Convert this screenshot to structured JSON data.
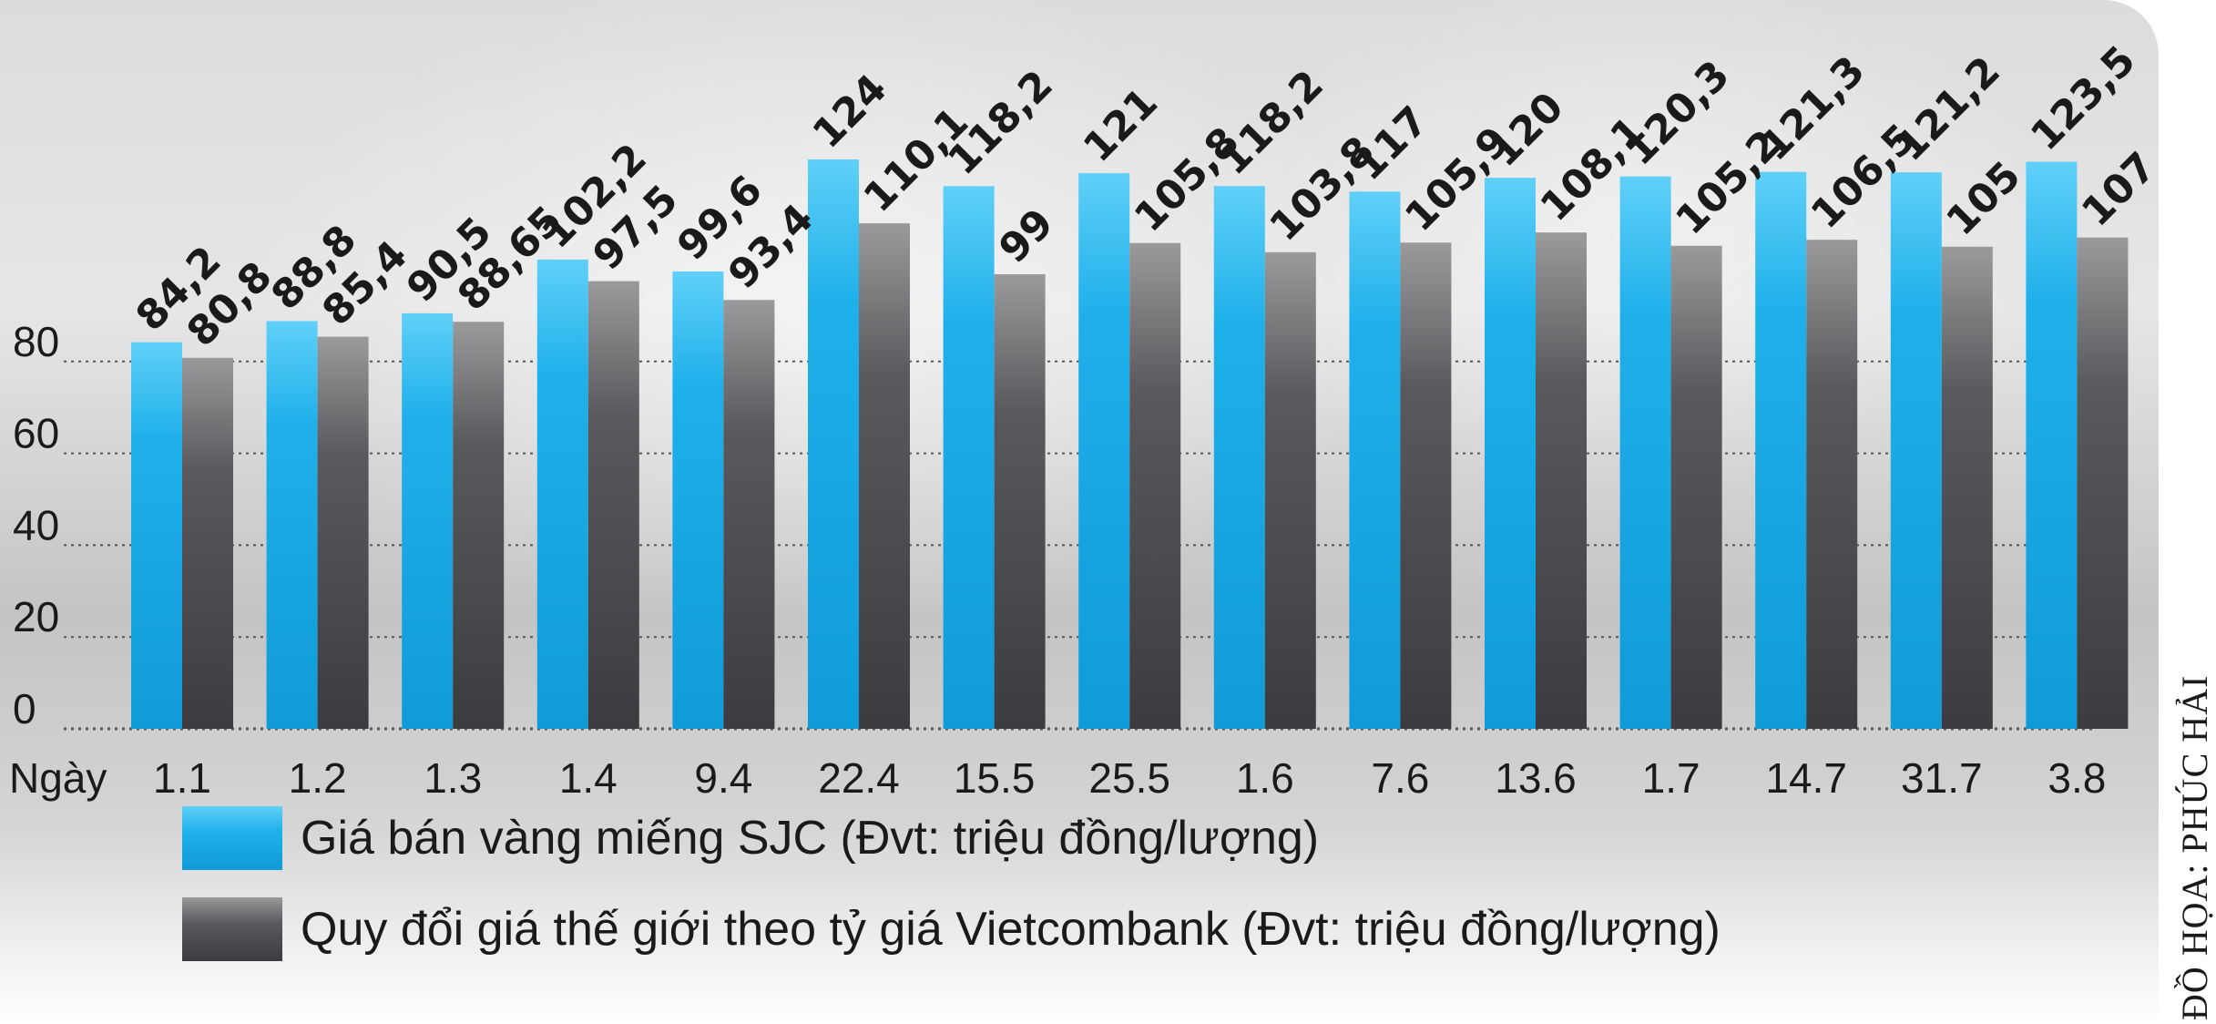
{
  "chart_data": {
    "type": "bar",
    "xlabel": "Ngày",
    "ylim": [
      0,
      125
    ],
    "yticks": [
      0,
      20,
      40,
      60,
      80
    ],
    "grid": "dotted horizontal",
    "categories": [
      "1.1",
      "1.2",
      "1.3",
      "1.4",
      "9.4",
      "22.4",
      "15.5",
      "25.5",
      "1.6",
      "7.6",
      "13.6",
      "1.7",
      "14.7",
      "31.7",
      "3.8"
    ],
    "series": [
      {
        "name": "Giá bán vàng miếng SJC (Đvt: triệu đồng/lượng)",
        "color": "#1aa9e6",
        "values": [
          84.2,
          88.8,
          90.5,
          102.2,
          99.6,
          124,
          118.2,
          121,
          118.2,
          117,
          120,
          120.3,
          121.3,
          121.2,
          123.5
        ],
        "labels": [
          "84,2",
          "88,8",
          "90,5",
          "102,2",
          "99,6",
          "124",
          "118,2",
          "121",
          "118,2",
          "117",
          "120",
          "120,3",
          "121,3",
          "121,2",
          "123,5"
        ]
      },
      {
        "name": "Quy đổi giá thế giới theo tỷ giá Vietcombank (Đvt: triệu đồng/lượng)",
        "color": "#4a4a4e",
        "values": [
          80.8,
          85.4,
          88.65,
          97.5,
          93.4,
          110.1,
          99,
          105.8,
          103.8,
          105.9,
          108.1,
          105.2,
          106.5,
          105,
          107
        ],
        "labels": [
          "80,8",
          "85,4",
          "88,65",
          "97,5",
          "93,4",
          "110,1",
          "99",
          "105,8",
          "103,8",
          "105,9",
          "108,1",
          "105,2",
          "106,5",
          "105",
          "107"
        ]
      }
    ]
  },
  "legend": {
    "items": [
      "Giá bán vàng miếng SJC (Đvt: triệu đồng/lượng)",
      "Quy đổi giá thế giới theo tỷ giá Vietcombank (Đvt: triệu đồng/lượng)"
    ]
  },
  "credit": "ĐỒ HỌA: PHÚC HẢI"
}
